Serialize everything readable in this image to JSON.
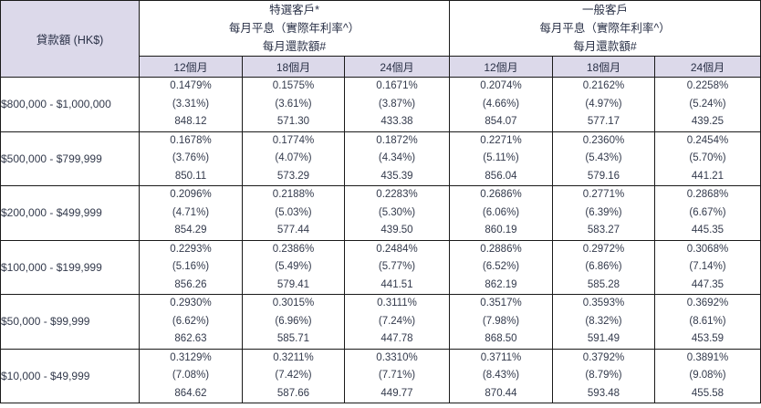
{
  "colors": {
    "header_shade": "#dcd9ea",
    "group_header_background": "#ffffff",
    "border": "#1a1a1a",
    "text": "#333a4c"
  },
  "table": {
    "loan_amount_header": "貸款額 (HK$)",
    "groups": [
      {
        "title": "特選客戶*",
        "line2": "每月平息（實際年利率^）",
        "line3": "每月還款額#"
      },
      {
        "title": "一般客戶",
        "line2": "每月平息（實際年利率^）",
        "line3": "每月還款額#"
      }
    ],
    "tenor_headers": [
      "12個月",
      "18個月",
      "24個月",
      "12個月",
      "18個月",
      "24個月"
    ],
    "rows": [
      {
        "loan_amount": "$800,000 - $1,000,000",
        "cells": [
          {
            "rate": "0.1479%",
            "apr": "(3.31%)",
            "repayment": "848.12"
          },
          {
            "rate": "0.1575%",
            "apr": "(3.61%)",
            "repayment": "571.30"
          },
          {
            "rate": "0.1671%",
            "apr": "(3.87%)",
            "repayment": "433.38"
          },
          {
            "rate": "0.2074%",
            "apr": "(4.66%)",
            "repayment": "854.07"
          },
          {
            "rate": "0.2162%",
            "apr": "(4.97%)",
            "repayment": "577.17"
          },
          {
            "rate": "0.2258%",
            "apr": "(5.24%)",
            "repayment": "439.25"
          }
        ]
      },
      {
        "loan_amount": "$500,000 - $799,999",
        "cells": [
          {
            "rate": "0.1678%",
            "apr": "(3.76%)",
            "repayment": "850.11"
          },
          {
            "rate": "0.1774%",
            "apr": "(4.07%)",
            "repayment": "573.29"
          },
          {
            "rate": "0.1872%",
            "apr": "(4.34%)",
            "repayment": "435.39"
          },
          {
            "rate": "0.2271%",
            "apr": "(5.11%)",
            "repayment": "856.04"
          },
          {
            "rate": "0.2360%",
            "apr": "(5.43%)",
            "repayment": "579.16"
          },
          {
            "rate": "0.2454%",
            "apr": "(5.70%)",
            "repayment": "441.21"
          }
        ]
      },
      {
        "loan_amount": "$200,000 - $499,999",
        "cells": [
          {
            "rate": "0.2096%",
            "apr": "(4.71%)",
            "repayment": "854.29"
          },
          {
            "rate": "0.2188%",
            "apr": "(5.03%)",
            "repayment": "577.44"
          },
          {
            "rate": "0.2283%",
            "apr": "(5.30%)",
            "repayment": "439.50"
          },
          {
            "rate": "0.2686%",
            "apr": "(6.06%)",
            "repayment": "860.19"
          },
          {
            "rate": "0.2771%",
            "apr": "(6.39%)",
            "repayment": "583.27"
          },
          {
            "rate": "0.2868%",
            "apr": "(6.67%)",
            "repayment": "445.35"
          }
        ]
      },
      {
        "loan_amount": "$100,000 - $199,999",
        "cells": [
          {
            "rate": "0.2293%",
            "apr": "(5.16%)",
            "repayment": "856.26"
          },
          {
            "rate": "0.2386%",
            "apr": "(5.49%)",
            "repayment": "579.41"
          },
          {
            "rate": "0.2484%",
            "apr": "(5.77%)",
            "repayment": "441.51"
          },
          {
            "rate": "0.2886%",
            "apr": "(6.52%)",
            "repayment": "862.19"
          },
          {
            "rate": "0.2972%",
            "apr": "(6.86%)",
            "repayment": "585.28"
          },
          {
            "rate": "0.3068%",
            "apr": "(7.14%)",
            "repayment": "447.35"
          }
        ]
      },
      {
        "loan_amount": "$50,000 - $99,999",
        "cells": [
          {
            "rate": "0.2930%",
            "apr": "(6.62%)",
            "repayment": "862.63"
          },
          {
            "rate": "0.3015%",
            "apr": "(6.96%)",
            "repayment": "585.71"
          },
          {
            "rate": "0.3111%",
            "apr": "(7.24%)",
            "repayment": "447.78"
          },
          {
            "rate": "0.3517%",
            "apr": "(7.98%)",
            "repayment": "868.50"
          },
          {
            "rate": "0.3593%",
            "apr": "(8.32%)",
            "repayment": "591.49"
          },
          {
            "rate": "0.3692%",
            "apr": "(8.61%)",
            "repayment": "453.59"
          }
        ]
      },
      {
        "loan_amount": "$10,000 - $49,999",
        "cells": [
          {
            "rate": "0.3129%",
            "apr": "(7.08%)",
            "repayment": "864.62"
          },
          {
            "rate": "0.3211%",
            "apr": "(7.42%)",
            "repayment": "587.66"
          },
          {
            "rate": "0.3310%",
            "apr": "(7.71%)",
            "repayment": "449.77"
          },
          {
            "rate": "0.3711%",
            "apr": "(8.43%)",
            "repayment": "870.44"
          },
          {
            "rate": "0.3792%",
            "apr": "(8.79%)",
            "repayment": "593.48"
          },
          {
            "rate": "0.3891%",
            "apr": "(9.08%)",
            "repayment": "455.58"
          }
        ]
      }
    ]
  }
}
